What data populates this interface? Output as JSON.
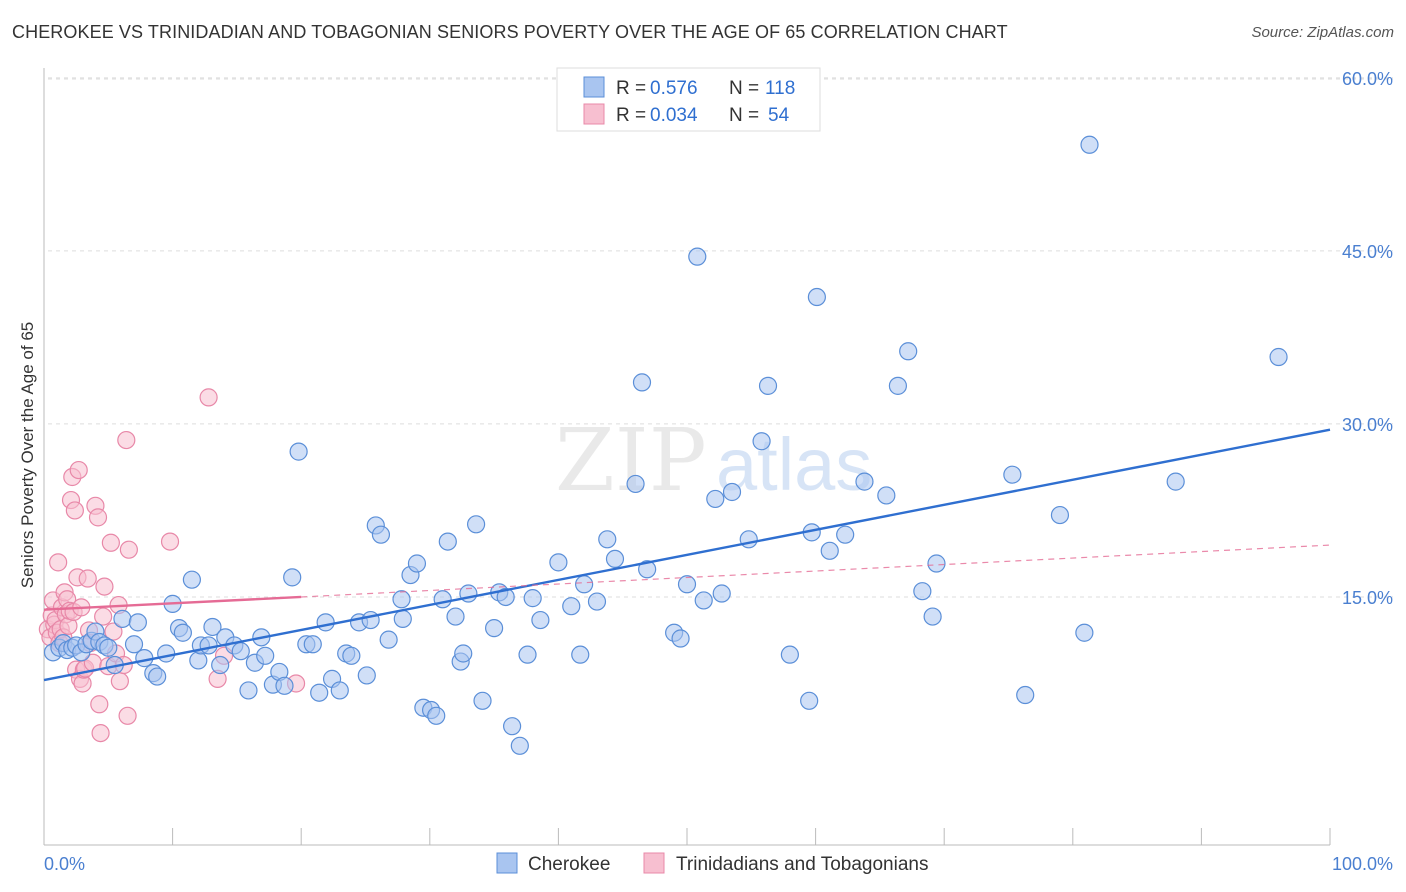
{
  "title": "CHEROKEE VS TRINIDADIAN AND TOBAGONIAN SENIORS POVERTY OVER THE AGE OF 65 CORRELATION CHART",
  "source": "Source: ZipAtlas.com",
  "watermark": {
    "zip": "ZIP",
    "atlas": "atlas"
  },
  "colors": {
    "cherokee_fill": "#a9c5f0",
    "cherokee_stroke": "#5b8fd8",
    "cherokee_line": "#2f6fd0",
    "trini_fill": "#f7bfd0",
    "trini_stroke": "#e888a8",
    "trini_line": "#e56b95",
    "tick_text": "#4a7fd0",
    "grid": "#dddddd"
  },
  "legend_box": {
    "rows": [
      {
        "r_label": "R =",
        "r_value": "0.576",
        "n_label": "N =",
        "n_value": "118"
      },
      {
        "r_label": "R =",
        "r_value": "0.034",
        "n_label": "N =",
        "n_value": "54"
      }
    ]
  },
  "chart_data": {
    "type": "scatter",
    "title": "CHEROKEE VS TRINIDADIAN AND TOBAGONIAN SENIORS POVERTY OVER THE AGE OF 65 CORRELATION CHART",
    "xlabel": "",
    "ylabel": "Seniors Poverty Over the Age of 65",
    "xlim": [
      0,
      100
    ],
    "ylim": [
      0,
      60
    ],
    "x_tick_labels": [
      "0.0%",
      "100.0%"
    ],
    "y_ticks": [
      15,
      30,
      45,
      60
    ],
    "y_tick_labels": [
      "15.0%",
      "30.0%",
      "45.0%",
      "60.0%"
    ],
    "grid": true,
    "legend_position": "bottom-center",
    "series": [
      {
        "name": "Cherokee",
        "r": 0.576,
        "n": 118,
        "trend": {
          "x": [
            0,
            100
          ],
          "y": [
            7.8,
            29.5
          ],
          "style": "solid"
        },
        "points": [
          [
            0.7,
            10.2
          ],
          [
            1.2,
            10.6
          ],
          [
            1.5,
            11.0
          ],
          [
            1.8,
            10.4
          ],
          [
            2.2,
            10.6
          ],
          [
            2.5,
            10.8
          ],
          [
            2.9,
            10.2
          ],
          [
            3.3,
            10.9
          ],
          [
            3.7,
            11.2
          ],
          [
            4.0,
            12.0
          ],
          [
            4.3,
            11.1
          ],
          [
            4.7,
            10.8
          ],
          [
            5.0,
            10.6
          ],
          [
            5.5,
            9.1
          ],
          [
            6.1,
            13.1
          ],
          [
            7.0,
            10.9
          ],
          [
            7.3,
            12.8
          ],
          [
            7.8,
            9.7
          ],
          [
            8.5,
            8.4
          ],
          [
            8.8,
            8.1
          ],
          [
            9.5,
            10.1
          ],
          [
            10.0,
            14.4
          ],
          [
            10.5,
            12.3
          ],
          [
            10.8,
            11.9
          ],
          [
            11.5,
            16.5
          ],
          [
            12.0,
            9.5
          ],
          [
            12.2,
            10.8
          ],
          [
            12.8,
            10.8
          ],
          [
            13.1,
            12.4
          ],
          [
            13.7,
            9.1
          ],
          [
            14.1,
            11.5
          ],
          [
            14.8,
            10.8
          ],
          [
            15.3,
            10.3
          ],
          [
            15.9,
            6.9
          ],
          [
            16.4,
            9.3
          ],
          [
            16.9,
            11.5
          ],
          [
            17.2,
            9.9
          ],
          [
            17.8,
            7.4
          ],
          [
            18.3,
            8.5
          ],
          [
            18.7,
            7.3
          ],
          [
            19.3,
            16.7
          ],
          [
            19.8,
            27.6
          ],
          [
            20.4,
            10.9
          ],
          [
            20.9,
            10.9
          ],
          [
            21.4,
            6.7
          ],
          [
            21.9,
            12.8
          ],
          [
            22.4,
            7.9
          ],
          [
            23.0,
            6.9
          ],
          [
            23.5,
            10.1
          ],
          [
            23.9,
            9.9
          ],
          [
            24.5,
            12.8
          ],
          [
            25.1,
            8.2
          ],
          [
            25.4,
            13.0
          ],
          [
            25.8,
            21.2
          ],
          [
            26.2,
            20.4
          ],
          [
            26.8,
            11.3
          ],
          [
            27.8,
            14.8
          ],
          [
            27.9,
            13.1
          ],
          [
            28.5,
            16.9
          ],
          [
            29.0,
            17.9
          ],
          [
            29.5,
            5.4
          ],
          [
            30.1,
            5.2
          ],
          [
            30.5,
            4.7
          ],
          [
            31.0,
            14.8
          ],
          [
            31.4,
            19.8
          ],
          [
            32.0,
            13.3
          ],
          [
            32.4,
            9.4
          ],
          [
            32.6,
            10.1
          ],
          [
            33.0,
            15.3
          ],
          [
            33.6,
            21.3
          ],
          [
            34.1,
            6.0
          ],
          [
            35.0,
            12.3
          ],
          [
            35.4,
            15.4
          ],
          [
            35.9,
            15.0
          ],
          [
            36.4,
            3.8
          ],
          [
            37.0,
            2.1
          ],
          [
            37.6,
            10.0
          ],
          [
            38.0,
            14.9
          ],
          [
            38.6,
            13.0
          ],
          [
            40.0,
            18.0
          ],
          [
            41.0,
            14.2
          ],
          [
            41.7,
            10.0
          ],
          [
            42.0,
            16.1
          ],
          [
            43.0,
            14.6
          ],
          [
            43.8,
            20.0
          ],
          [
            44.4,
            18.3
          ],
          [
            46.9,
            17.4
          ],
          [
            46.5,
            33.6
          ],
          [
            46.0,
            24.8
          ],
          [
            49.0,
            11.9
          ],
          [
            49.5,
            11.4
          ],
          [
            50.0,
            16.1
          ],
          [
            50.8,
            44.5
          ],
          [
            51.3,
            14.7
          ],
          [
            52.2,
            23.5
          ],
          [
            52.7,
            15.3
          ],
          [
            53.5,
            24.1
          ],
          [
            54.8,
            20.0
          ],
          [
            55.8,
            28.5
          ],
          [
            56.3,
            33.3
          ],
          [
            58.0,
            10.0
          ],
          [
            59.5,
            6.0
          ],
          [
            59.7,
            20.6
          ],
          [
            60.1,
            41.0
          ],
          [
            61.1,
            19.0
          ],
          [
            62.3,
            20.4
          ],
          [
            63.8,
            25.0
          ],
          [
            65.5,
            23.8
          ],
          [
            66.4,
            33.3
          ],
          [
            67.2,
            36.3
          ],
          [
            68.3,
            15.5
          ],
          [
            69.1,
            13.3
          ],
          [
            69.4,
            17.9
          ],
          [
            75.3,
            25.6
          ],
          [
            76.3,
            6.5
          ],
          [
            79.0,
            22.1
          ],
          [
            80.9,
            11.9
          ],
          [
            81.3,
            54.2
          ],
          [
            88.0,
            25.0
          ],
          [
            96.0,
            35.8
          ]
        ]
      },
      {
        "name": "Trinidadians and Tobagonians",
        "r": 0.034,
        "n": 54,
        "trend": {
          "x": [
            0,
            20
          ],
          "y": [
            13.9,
            15.0
          ],
          "style": "solid",
          "extension": {
            "x": [
              20,
              100
            ],
            "y": [
              15.0,
              19.5
            ],
            "style": "dashed"
          }
        },
        "points": [
          [
            0.3,
            12.2
          ],
          [
            0.5,
            11.5
          ],
          [
            0.6,
            13.4
          ],
          [
            0.7,
            14.7
          ],
          [
            0.8,
            12.6
          ],
          [
            0.9,
            13.0
          ],
          [
            1.0,
            11.9
          ],
          [
            1.1,
            18.0
          ],
          [
            1.2,
            11.0
          ],
          [
            1.3,
            12.2
          ],
          [
            1.4,
            14.1
          ],
          [
            1.5,
            11.5
          ],
          [
            1.6,
            15.4
          ],
          [
            1.7,
            13.5
          ],
          [
            1.8,
            14.8
          ],
          [
            1.9,
            12.5
          ],
          [
            2.0,
            13.8
          ],
          [
            2.1,
            23.4
          ],
          [
            2.2,
            25.4
          ],
          [
            2.3,
            13.7
          ],
          [
            2.4,
            22.5
          ],
          [
            2.5,
            8.7
          ],
          [
            2.6,
            16.7
          ],
          [
            2.7,
            26.0
          ],
          [
            2.8,
            7.9
          ],
          [
            2.9,
            14.1
          ],
          [
            3.0,
            7.5
          ],
          [
            3.1,
            8.7
          ],
          [
            3.2,
            8.8
          ],
          [
            3.4,
            16.6
          ],
          [
            3.5,
            12.1
          ],
          [
            3.6,
            11.0
          ],
          [
            3.8,
            9.3
          ],
          [
            4.0,
            22.9
          ],
          [
            4.2,
            21.9
          ],
          [
            4.3,
            5.7
          ],
          [
            4.4,
            3.2
          ],
          [
            4.6,
            13.3
          ],
          [
            4.7,
            15.9
          ],
          [
            5.0,
            9.0
          ],
          [
            5.2,
            19.7
          ],
          [
            5.4,
            12.0
          ],
          [
            5.6,
            10.1
          ],
          [
            5.8,
            14.3
          ],
          [
            5.9,
            7.7
          ],
          [
            6.2,
            9.1
          ],
          [
            6.4,
            28.6
          ],
          [
            6.5,
            4.7
          ],
          [
            6.6,
            19.1
          ],
          [
            9.8,
            19.8
          ],
          [
            12.8,
            32.3
          ],
          [
            13.5,
            7.9
          ],
          [
            14.0,
            9.9
          ],
          [
            19.6,
            7.5
          ]
        ]
      }
    ]
  }
}
